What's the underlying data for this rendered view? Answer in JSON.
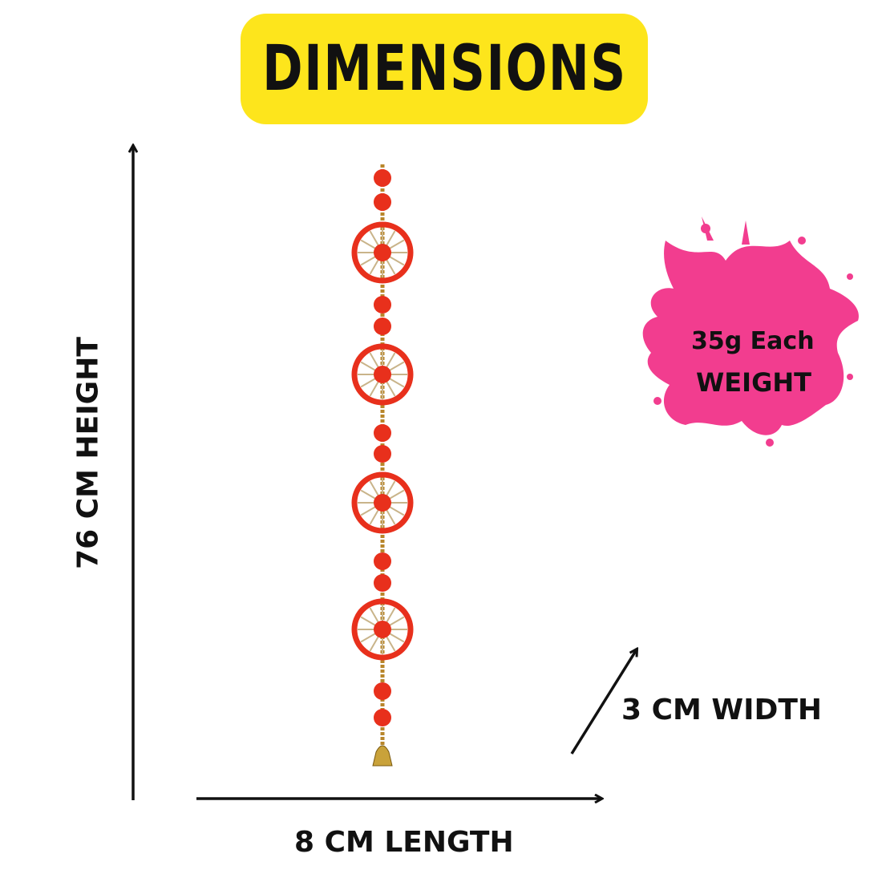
{
  "title": "DIMENSIONS",
  "dimensions": {
    "height": "76 CM HEIGHT",
    "length": "8 CM LENGTH",
    "width": "3 CM WIDTH"
  },
  "weight": {
    "value": "35g Each",
    "label": "WEIGHT"
  },
  "colors": {
    "title_bg": "#fde51c",
    "splash": "#f23d8f",
    "ornament_red": "#e8301c",
    "bead_gold": "#b8862a"
  }
}
